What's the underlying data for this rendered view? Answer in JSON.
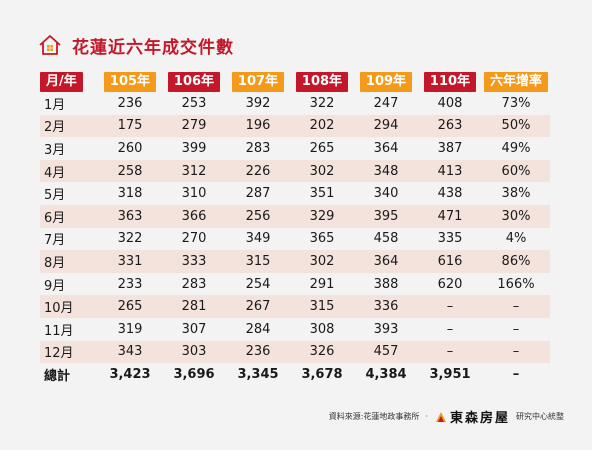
{
  "title": "花蓮近六年成交件數",
  "headers": [
    {
      "text": "月/年",
      "color": "#c4182a"
    },
    {
      "text": "105年",
      "color": "#f39a1b"
    },
    {
      "text": "106年",
      "color": "#c4182a"
    },
    {
      "text": "107年",
      "color": "#f39a1b"
    },
    {
      "text": "108年",
      "color": "#c4182a"
    },
    {
      "text": "109年",
      "color": "#f39a1b"
    },
    {
      "text": "110年",
      "color": "#c4182a"
    },
    {
      "text": "六年增率",
      "color": "#f39a1b"
    }
  ],
  "rows": [
    [
      "1月",
      "236",
      "253",
      "392",
      "322",
      "247",
      "408",
      "73%"
    ],
    [
      "2月",
      "175",
      "279",
      "196",
      "202",
      "294",
      "263",
      "50%"
    ],
    [
      "3月",
      "260",
      "399",
      "283",
      "265",
      "364",
      "387",
      "49%"
    ],
    [
      "4月",
      "258",
      "312",
      "226",
      "302",
      "348",
      "413",
      "60%"
    ],
    [
      "5月",
      "318",
      "310",
      "287",
      "351",
      "340",
      "438",
      "38%"
    ],
    [
      "6月",
      "363",
      "366",
      "256",
      "329",
      "395",
      "471",
      "30%"
    ],
    [
      "7月",
      "322",
      "270",
      "349",
      "365",
      "458",
      "335",
      "4%"
    ],
    [
      "8月",
      "331",
      "333",
      "315",
      "302",
      "364",
      "616",
      "86%"
    ],
    [
      "9月",
      "233",
      "283",
      "254",
      "291",
      "388",
      "620",
      "166%"
    ],
    [
      "10月",
      "265",
      "281",
      "267",
      "315",
      "336",
      "–",
      "–"
    ],
    [
      "11月",
      "319",
      "307",
      "284",
      "308",
      "393",
      "–",
      "–"
    ],
    [
      "12月",
      "343",
      "303",
      "236",
      "326",
      "457",
      "–",
      "–"
    ],
    [
      "總計",
      "3,423",
      "3,696",
      "3,345",
      "3,678",
      "4,384",
      "3,951",
      "–"
    ]
  ],
  "footer": {
    "source": "資料來源:花蓮地政事務所",
    "separator": "·",
    "brand": "東森房屋",
    "suffix": "研究中心統整"
  },
  "colors": {
    "accent_red": "#c4182a",
    "accent_orange": "#f39a1b",
    "stripe": "#f4e3dc",
    "background": "#f3f3f3"
  }
}
